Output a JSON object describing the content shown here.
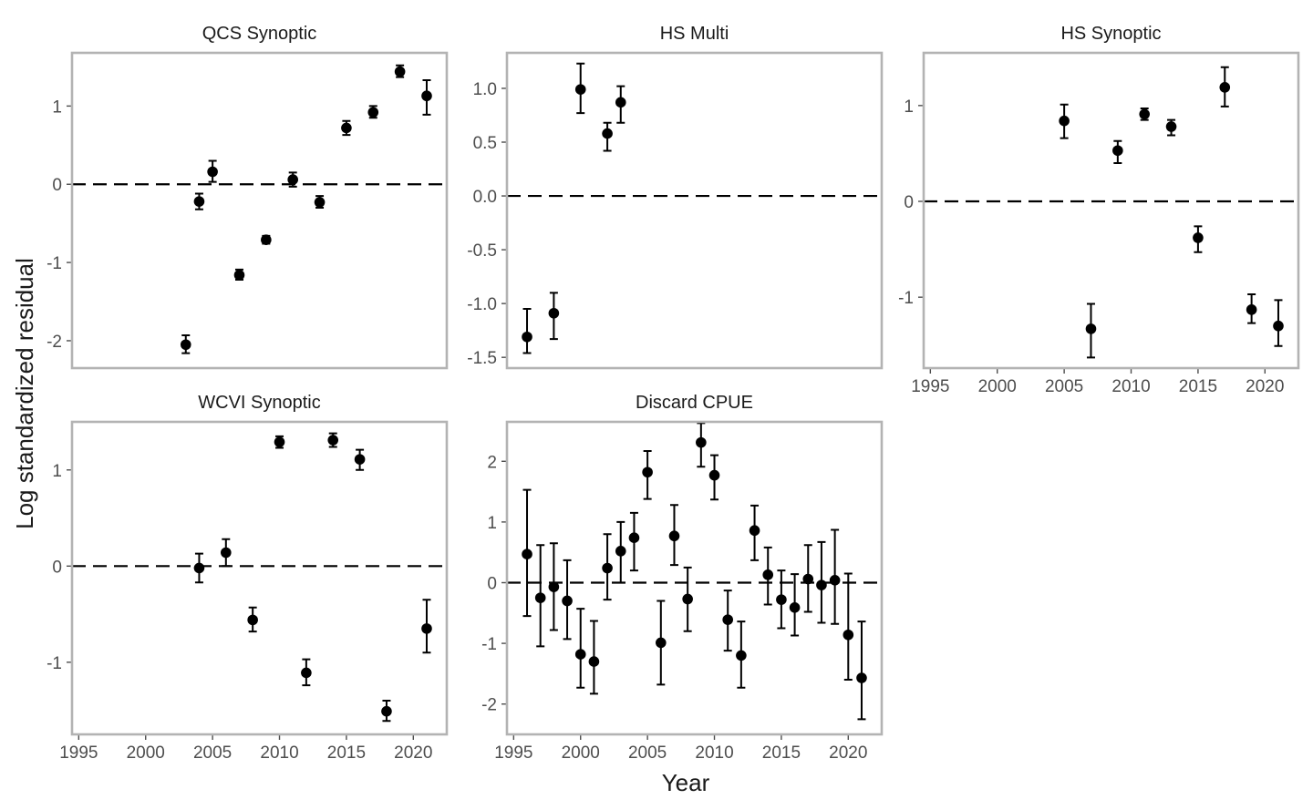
{
  "figure": {
    "xlabel": "Year",
    "ylabel": "Log standardized residual",
    "reference_line": 0,
    "colors": {
      "points": "#000000",
      "frame": "#b3b3b3",
      "tick_text": "#4d4d4d"
    }
  },
  "chart_data": [
    {
      "type": "scatter",
      "title": "QCS Synoptic",
      "xlim": [
        1994.5,
        2022.5
      ],
      "ylim": [
        -2.35,
        1.68
      ],
      "yticks": [
        -2,
        -1,
        0,
        1
      ],
      "ytick_labels": [
        "-2",
        "-1",
        "0",
        "1"
      ],
      "xticks": [],
      "xtick_labels": [],
      "points": [
        {
          "x": 2003,
          "y": -2.05,
          "lo": -2.16,
          "hi": -1.93
        },
        {
          "x": 2004,
          "y": -0.22,
          "lo": -0.32,
          "hi": -0.12
        },
        {
          "x": 2005,
          "y": 0.16,
          "lo": 0.03,
          "hi": 0.3
        },
        {
          "x": 2007,
          "y": -1.16,
          "lo": -1.22,
          "hi": -1.09
        },
        {
          "x": 2009,
          "y": -0.71,
          "lo": -0.76,
          "hi": -0.66
        },
        {
          "x": 2011,
          "y": 0.06,
          "lo": -0.03,
          "hi": 0.15
        },
        {
          "x": 2013,
          "y": -0.23,
          "lo": -0.3,
          "hi": -0.15
        },
        {
          "x": 2015,
          "y": 0.72,
          "lo": 0.63,
          "hi": 0.81
        },
        {
          "x": 2017,
          "y": 0.92,
          "lo": 0.85,
          "hi": 1.0
        },
        {
          "x": 2019,
          "y": 1.44,
          "lo": 1.37,
          "hi": 1.52
        },
        {
          "x": 2021,
          "y": 1.13,
          "lo": 0.89,
          "hi": 1.33
        }
      ]
    },
    {
      "type": "scatter",
      "title": "HS Multi",
      "xlim": [
        1994.5,
        2022.5
      ],
      "ylim": [
        -1.6,
        1.33
      ],
      "yticks": [
        -1.5,
        -1.0,
        -0.5,
        0.0,
        0.5,
        1.0
      ],
      "ytick_labels": [
        "-1.5",
        "-1.0",
        "-0.5",
        "0.0",
        "0.5",
        "1.0"
      ],
      "xticks": [],
      "xtick_labels": [],
      "points": [
        {
          "x": 1996,
          "y": -1.31,
          "lo": -1.46,
          "hi": -1.05
        },
        {
          "x": 1998,
          "y": -1.09,
          "lo": -1.33,
          "hi": -0.9
        },
        {
          "x": 2000,
          "y": 0.99,
          "lo": 0.77,
          "hi": 1.23
        },
        {
          "x": 2002,
          "y": 0.58,
          "lo": 0.42,
          "hi": 0.68
        },
        {
          "x": 2003,
          "y": 0.87,
          "lo": 0.68,
          "hi": 1.02
        }
      ]
    },
    {
      "type": "scatter",
      "title": "HS Synoptic",
      "xlim": [
        1994.5,
        2022.5
      ],
      "ylim": [
        -1.74,
        1.55
      ],
      "yticks": [
        -1,
        0,
        1
      ],
      "ytick_labels": [
        "-1",
        "0",
        "1"
      ],
      "xticks": [
        1995,
        2000,
        2005,
        2010,
        2015,
        2020
      ],
      "xtick_labels": [
        "1995",
        "2000",
        "2005",
        "2010",
        "2015",
        "2020"
      ],
      "points": [
        {
          "x": 2005,
          "y": 0.84,
          "lo": 0.66,
          "hi": 1.01
        },
        {
          "x": 2007,
          "y": -1.33,
          "lo": -1.63,
          "hi": -1.07
        },
        {
          "x": 2009,
          "y": 0.53,
          "lo": 0.4,
          "hi": 0.63
        },
        {
          "x": 2011,
          "y": 0.91,
          "lo": 0.85,
          "hi": 0.97
        },
        {
          "x": 2013,
          "y": 0.78,
          "lo": 0.69,
          "hi": 0.85
        },
        {
          "x": 2015,
          "y": -0.38,
          "lo": -0.53,
          "hi": -0.26
        },
        {
          "x": 2017,
          "y": 1.19,
          "lo": 0.99,
          "hi": 1.4
        },
        {
          "x": 2019,
          "y": -1.13,
          "lo": -1.27,
          "hi": -0.97
        },
        {
          "x": 2021,
          "y": -1.3,
          "lo": -1.51,
          "hi": -1.03
        }
      ]
    },
    {
      "type": "scatter",
      "title": "WCVI Synoptic",
      "xlim": [
        1994.5,
        2022.5
      ],
      "ylim": [
        -1.75,
        1.5
      ],
      "yticks": [
        -1,
        0,
        1
      ],
      "ytick_labels": [
        "-1",
        "0",
        "1"
      ],
      "xticks": [
        1995,
        2000,
        2005,
        2010,
        2015,
        2020
      ],
      "xtick_labels": [
        "1995",
        "2000",
        "2005",
        "2010",
        "2015",
        "2020"
      ],
      "points": [
        {
          "x": 2004,
          "y": -0.02,
          "lo": -0.17,
          "hi": 0.13
        },
        {
          "x": 2006,
          "y": 0.14,
          "lo": 0.0,
          "hi": 0.28
        },
        {
          "x": 2008,
          "y": -0.56,
          "lo": -0.68,
          "hi": -0.43
        },
        {
          "x": 2010,
          "y": 1.29,
          "lo": 1.23,
          "hi": 1.35
        },
        {
          "x": 2012,
          "y": -1.11,
          "lo": -1.24,
          "hi": -0.97
        },
        {
          "x": 2014,
          "y": 1.31,
          "lo": 1.24,
          "hi": 1.38
        },
        {
          "x": 2016,
          "y": 1.11,
          "lo": 1.0,
          "hi": 1.21
        },
        {
          "x": 2018,
          "y": -1.51,
          "lo": -1.61,
          "hi": -1.4
        },
        {
          "x": 2021,
          "y": -0.65,
          "lo": -0.9,
          "hi": -0.35
        }
      ]
    },
    {
      "type": "scatter",
      "title": "Discard CPUE",
      "xlim": [
        1994.5,
        2022.5
      ],
      "ylim": [
        -2.5,
        2.65
      ],
      "yticks": [
        -2,
        -1,
        0,
        1,
        2
      ],
      "ytick_labels": [
        "-2",
        "-1",
        "0",
        "1",
        "2"
      ],
      "xticks": [
        1995,
        2000,
        2005,
        2010,
        2015,
        2020
      ],
      "xtick_labels": [
        "1995",
        "2000",
        "2005",
        "2010",
        "2015",
        "2020"
      ],
      "points": [
        {
          "x": 1996,
          "y": 0.47,
          "lo": -0.55,
          "hi": 1.53
        },
        {
          "x": 1997,
          "y": -0.25,
          "lo": -1.05,
          "hi": 0.62
        },
        {
          "x": 1998,
          "y": -0.07,
          "lo": -0.78,
          "hi": 0.65
        },
        {
          "x": 1999,
          "y": -0.3,
          "lo": -0.93,
          "hi": 0.37
        },
        {
          "x": 2000,
          "y": -1.18,
          "lo": -1.73,
          "hi": -0.43
        },
        {
          "x": 2001,
          "y": -1.3,
          "lo": -1.83,
          "hi": -0.63
        },
        {
          "x": 2002,
          "y": 0.24,
          "lo": -0.28,
          "hi": 0.8
        },
        {
          "x": 2003,
          "y": 0.52,
          "lo": 0.0,
          "hi": 1.0
        },
        {
          "x": 2004,
          "y": 0.74,
          "lo": 0.2,
          "hi": 1.15
        },
        {
          "x": 2005,
          "y": 1.82,
          "lo": 1.38,
          "hi": 2.17
        },
        {
          "x": 2006,
          "y": -0.99,
          "lo": -1.68,
          "hi": -0.3
        },
        {
          "x": 2007,
          "y": 0.77,
          "lo": 0.29,
          "hi": 1.28
        },
        {
          "x": 2008,
          "y": -0.27,
          "lo": -0.8,
          "hi": 0.25
        },
        {
          "x": 2009,
          "y": 2.31,
          "lo": 1.91,
          "hi": 2.63
        },
        {
          "x": 2010,
          "y": 1.77,
          "lo": 1.37,
          "hi": 2.1
        },
        {
          "x": 2011,
          "y": -0.61,
          "lo": -1.12,
          "hi": -0.13
        },
        {
          "x": 2012,
          "y": -1.2,
          "lo": -1.73,
          "hi": -0.64
        },
        {
          "x": 2013,
          "y": 0.86,
          "lo": 0.37,
          "hi": 1.27
        },
        {
          "x": 2014,
          "y": 0.13,
          "lo": -0.36,
          "hi": 0.58
        },
        {
          "x": 2015,
          "y": -0.28,
          "lo": -0.75,
          "hi": 0.2
        },
        {
          "x": 2016,
          "y": -0.41,
          "lo": -0.87,
          "hi": 0.14
        },
        {
          "x": 2017,
          "y": 0.06,
          "lo": -0.48,
          "hi": 0.62
        },
        {
          "x": 2018,
          "y": -0.04,
          "lo": -0.66,
          "hi": 0.67
        },
        {
          "x": 2019,
          "y": 0.04,
          "lo": -0.68,
          "hi": 0.87
        },
        {
          "x": 2020,
          "y": -0.86,
          "lo": -1.6,
          "hi": 0.15
        },
        {
          "x": 2021,
          "y": -1.57,
          "lo": -2.25,
          "hi": -0.64
        }
      ]
    }
  ]
}
